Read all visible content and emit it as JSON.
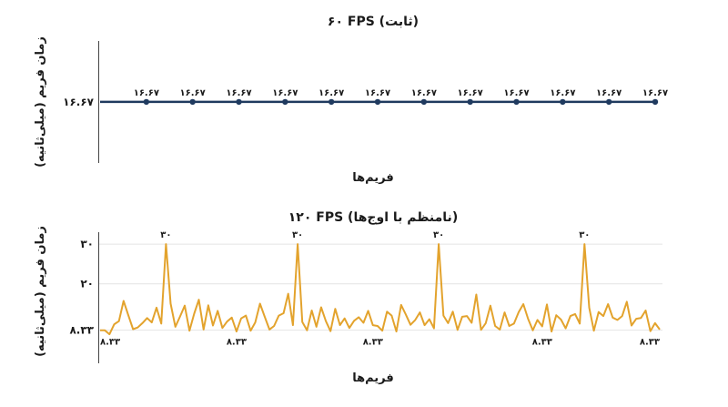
{
  "chart_data": [
    {
      "type": "line",
      "title": "۶۰ FPS (ثابت)",
      "xlabel": "فریم‌ها",
      "ylabel": "زمان فریم (میلی‌ثانیه)",
      "y_tick_labels": [
        "۱۶.۶۷"
      ],
      "y_ticks": [
        16.67
      ],
      "ylim": [
        0,
        33.3
      ],
      "grid": false,
      "line_color": "#1f3a5f",
      "series": [
        {
          "x": [
            0,
            10,
            20,
            30,
            40,
            50,
            60,
            70,
            80,
            90,
            100,
            110,
            120
          ],
          "values": [
            16.67,
            16.67,
            16.67,
            16.67,
            16.67,
            16.67,
            16.67,
            16.67,
            16.67,
            16.67,
            16.67,
            16.67,
            16.67
          ]
        }
      ],
      "annotations": [
        {
          "x": 10,
          "y": 16.67,
          "text": "۱۶.۶۷"
        },
        {
          "x": 20,
          "y": 16.67,
          "text": "۱۶.۶۷"
        },
        {
          "x": 30,
          "y": 16.67,
          "text": "۱۶.۶۷"
        },
        {
          "x": 40,
          "y": 16.67,
          "text": "۱۶.۶۷"
        },
        {
          "x": 50,
          "y": 16.67,
          "text": "۱۶.۶۷"
        },
        {
          "x": 60,
          "y": 16.67,
          "text": "۱۶.۶۷"
        },
        {
          "x": 70,
          "y": 16.67,
          "text": "۱۶.۶۷"
        },
        {
          "x": 80,
          "y": 16.67,
          "text": "۱۶.۶۷"
        },
        {
          "x": 90,
          "y": 16.67,
          "text": "۱۶.۶۷"
        },
        {
          "x": 100,
          "y": 16.67,
          "text": "۱۶.۶۷"
        },
        {
          "x": 110,
          "y": 16.67,
          "text": "۱۶.۶۷"
        },
        {
          "x": 120,
          "y": 16.67,
          "text": "۱۶.۶۷"
        }
      ]
    },
    {
      "type": "line",
      "title": "۱۲۰ FPS (نامنظم با اوج‌ها)",
      "xlabel": "فریم‌ها",
      "ylabel": "زمان فریم (میلی‌ثانیه)",
      "y_tick_labels": [
        "۸.۳۳",
        "۲۰",
        "۳۰"
      ],
      "y_ticks": [
        8.33,
        20,
        30
      ],
      "ylim": [
        0,
        33
      ],
      "grid": true,
      "line_color": "#e3a32d",
      "series": [
        {
          "x": [
            0,
            1,
            2,
            3,
            4,
            5,
            6,
            7,
            8,
            9,
            10,
            11,
            12,
            13,
            14,
            15,
            16,
            17,
            18,
            19,
            20,
            21,
            22,
            23,
            24,
            25,
            26,
            27,
            28,
            29,
            30,
            31,
            32,
            33,
            34,
            35,
            36,
            37,
            38,
            39,
            40,
            41,
            42,
            43,
            44,
            45,
            46,
            47,
            48,
            49,
            50,
            51,
            52,
            53,
            54,
            55,
            56,
            57,
            58,
            59,
            60,
            61,
            62,
            63,
            64,
            65,
            66,
            67,
            68,
            69,
            70,
            71,
            72,
            73,
            74,
            75,
            76,
            77,
            78,
            79,
            80,
            81,
            82,
            83,
            84,
            85,
            86,
            87,
            88,
            89,
            90,
            91,
            92,
            93,
            94,
            95,
            96,
            97,
            98,
            99,
            100,
            101,
            102,
            103,
            104,
            105,
            106,
            107,
            108,
            109,
            110,
            111,
            112,
            113,
            114,
            115,
            116,
            117,
            118,
            119
          ],
          "values": [
            8.33,
            8.3,
            7.3,
            9.8,
            10.6,
            15.7,
            12.1,
            8.6,
            9.0,
            10.1,
            11.4,
            10.3,
            14.0,
            10.0,
            30.0,
            15.0,
            9.2,
            11.8,
            14.5,
            8.2,
            12.5,
            16.0,
            8.5,
            14.6,
            9.5,
            13.2,
            8.9,
            10.5,
            11.5,
            8.0,
            11.3,
            12.0,
            8.2,
            10.3,
            15.0,
            11.7,
            8.5,
            9.4,
            12.0,
            12.6,
            17.5,
            9.6,
            30.0,
            10.4,
            8.3,
            13.3,
            9.2,
            14.1,
            10.6,
            8.1,
            13.7,
            9.6,
            11.3,
            8.9,
            10.7,
            11.6,
            10.2,
            13.2,
            9.6,
            9.4,
            8.2,
            13.0,
            12.0,
            8.0,
            14.7,
            12.3,
            9.7,
            10.9,
            12.8,
            9.6,
            11.1,
            8.8,
            30.0,
            12.0,
            10.1,
            13.0,
            8.4,
            11.7,
            11.9,
            10.2,
            17.3,
            8.4,
            10.1,
            14.5,
            9.4,
            8.5,
            12.8,
            9.4,
            10.0,
            12.9,
            14.9,
            11.2,
            8.3,
            10.9,
            9.3,
            14.8,
            8.0,
            12.1,
            11.0,
            8.8,
            11.9,
            12.4,
            10.0,
            30.0,
            14.0,
            8.2,
            12.9,
            11.9,
            14.9,
            11.5,
            10.9,
            11.9,
            15.5,
            9.5,
            11.2,
            11.4,
            13.3,
            8.1,
            10.1,
            8.5
          ]
        }
      ],
      "annotations": [
        {
          "x": 14,
          "y": 30,
          "text": "۳۰"
        },
        {
          "x": 42,
          "y": 30,
          "text": "۳۰"
        },
        {
          "x": 72,
          "y": 30,
          "text": "۳۰"
        },
        {
          "x": 103,
          "y": 30,
          "text": "۳۰"
        },
        {
          "x": 0,
          "y": 8.33,
          "text": "۸.۳۳"
        },
        {
          "x": 29,
          "y": 8.33,
          "text": "۸.۳۳"
        },
        {
          "x": 58,
          "y": 8.33,
          "text": "۸.۳۳"
        },
        {
          "x": 94,
          "y": 8.33,
          "text": "۸.۳۳"
        },
        {
          "x": 119,
          "y": 8.33,
          "text": "۸.۳۳"
        }
      ]
    }
  ]
}
